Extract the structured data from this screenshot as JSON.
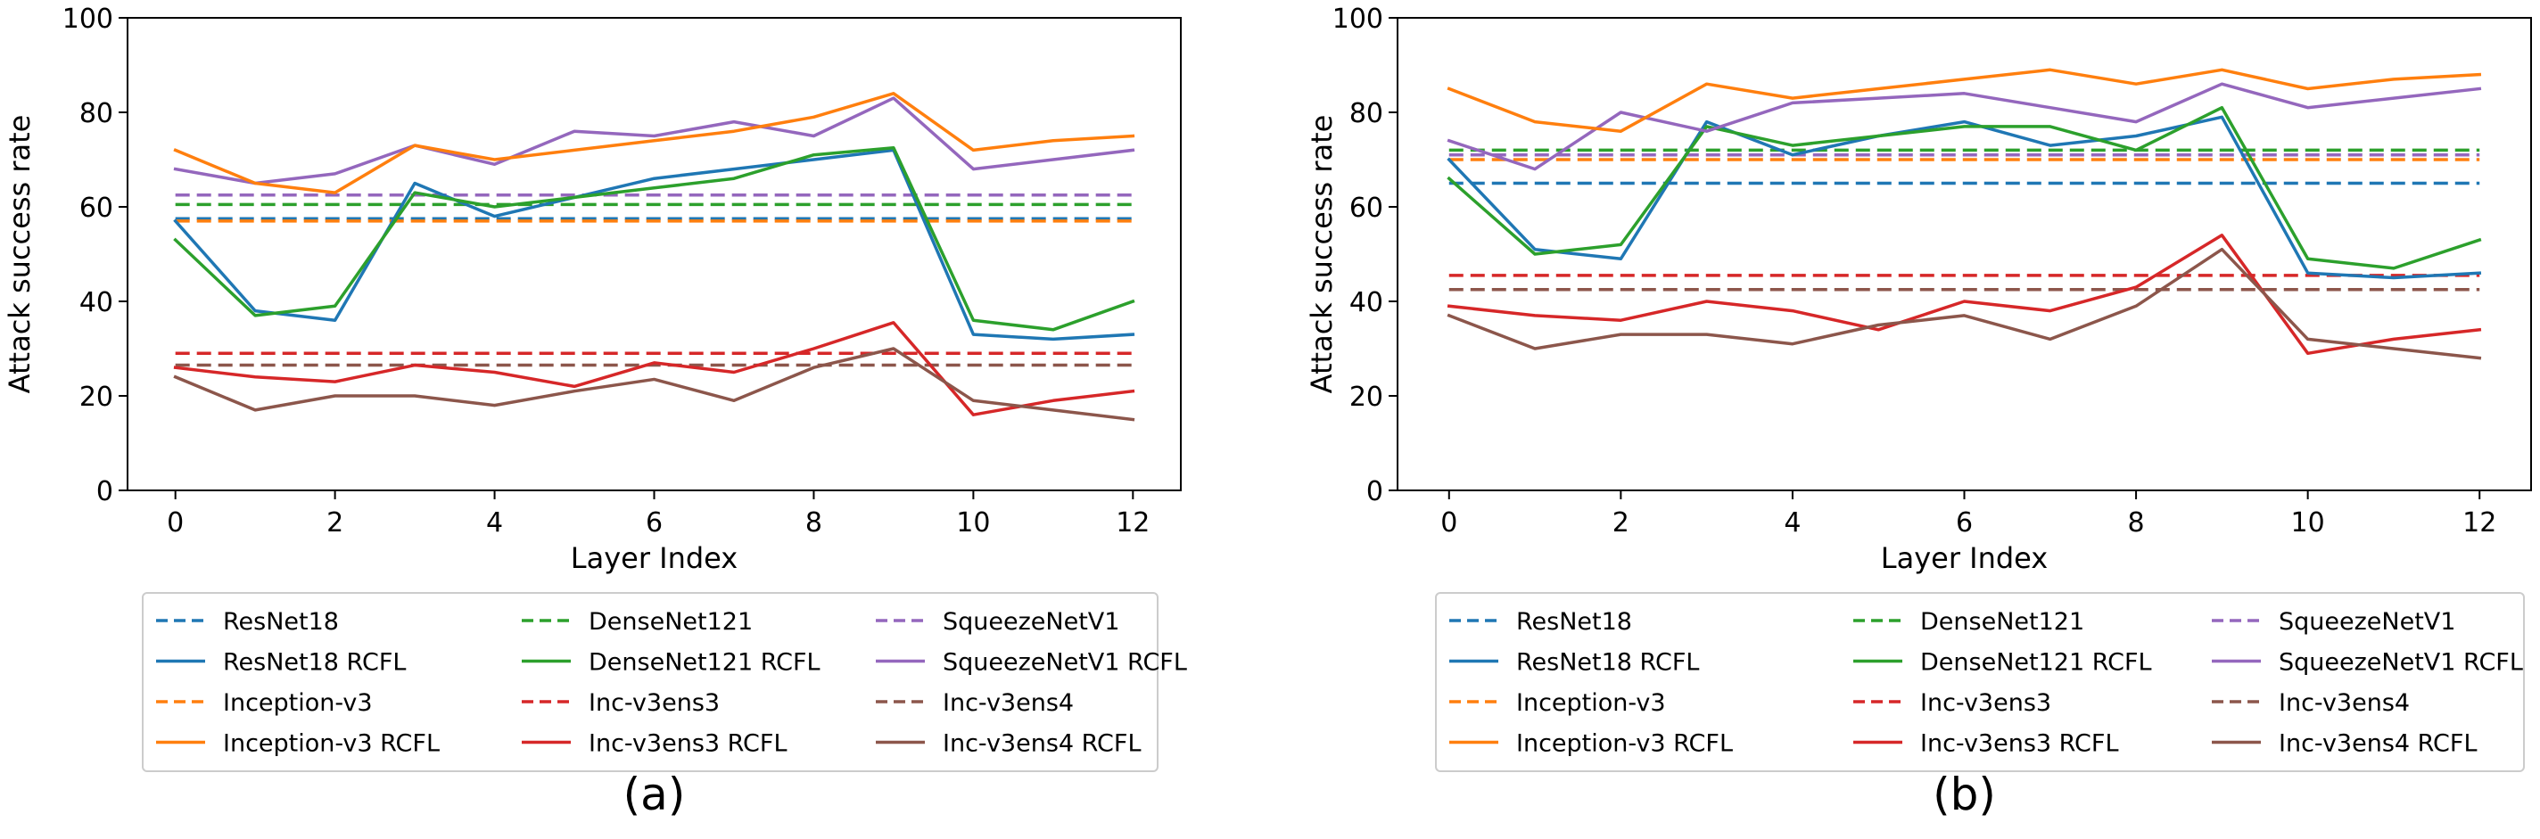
{
  "figure": {
    "panel_labels": [
      "(a)",
      "(b)"
    ]
  },
  "colors": {
    "ResNet18": "#1f77b4",
    "DenseNet121": "#2ca02c",
    "SqueezeNetV1": "#9467bd",
    "Inception-v3": "#ff7f0e",
    "Inc-v3ens3": "#d62728",
    "Inc-v3ens4": "#8c564b"
  },
  "legend": {
    "entries": [
      {
        "label": "ResNet18",
        "model": "ResNet18",
        "style": "dashed"
      },
      {
        "label": "DenseNet121",
        "model": "DenseNet121",
        "style": "dashed"
      },
      {
        "label": "SqueezeNetV1",
        "model": "SqueezeNetV1",
        "style": "dashed"
      },
      {
        "label": "ResNet18 RCFL",
        "model": "ResNet18",
        "style": "solid"
      },
      {
        "label": "DenseNet121 RCFL",
        "model": "DenseNet121",
        "style": "solid"
      },
      {
        "label": "SqueezeNetV1 RCFL",
        "model": "SqueezeNetV1",
        "style": "solid"
      },
      {
        "label": "Inception-v3",
        "model": "Inception-v3",
        "style": "dashed"
      },
      {
        "label": "Inc-v3ens3",
        "model": "Inc-v3ens3",
        "style": "dashed"
      },
      {
        "label": "Inc-v3ens4",
        "model": "Inc-v3ens4",
        "style": "dashed"
      },
      {
        "label": "Inception-v3 RCFL",
        "model": "Inception-v3",
        "style": "solid"
      },
      {
        "label": "Inc-v3ens3 RCFL",
        "model": "Inc-v3ens3",
        "style": "solid"
      },
      {
        "label": "Inc-v3ens4 RCFL",
        "model": "Inc-v3ens4",
        "style": "solid"
      }
    ]
  },
  "chart_data": [
    {
      "type": "line",
      "panel": "(a)",
      "xlabel": "Layer Index",
      "ylabel": "Attack success rate",
      "xlim": [
        -0.6,
        12.6
      ],
      "ylim": [
        0,
        100
      ],
      "xticks": [
        0,
        2,
        4,
        6,
        8,
        10,
        12
      ],
      "yticks": [
        0,
        20,
        40,
        60,
        80,
        100
      ],
      "x": [
        0,
        1,
        2,
        3,
        4,
        5,
        6,
        7,
        8,
        9,
        10,
        11,
        12
      ],
      "baselines": [
        {
          "name": "ResNet18",
          "value": 57.5
        },
        {
          "name": "DenseNet121",
          "value": 60.5
        },
        {
          "name": "SqueezeNetV1",
          "value": 62.5
        },
        {
          "name": "Inception-v3",
          "value": 57.0
        },
        {
          "name": "Inc-v3ens3",
          "value": 29.0
        },
        {
          "name": "Inc-v3ens4",
          "value": 26.5
        }
      ],
      "series": [
        {
          "name": "ResNet18 RCFL",
          "model": "ResNet18",
          "values": [
            57,
            38,
            36,
            65,
            58,
            62,
            66,
            68,
            70,
            72,
            33,
            32,
            33
          ]
        },
        {
          "name": "DenseNet121 RCFL",
          "model": "DenseNet121",
          "values": [
            53,
            37,
            39,
            63,
            60,
            62,
            64,
            66,
            71,
            72.5,
            36,
            34,
            40
          ]
        },
        {
          "name": "SqueezeNetV1 RCFL",
          "model": "SqueezeNetV1",
          "values": [
            68,
            65,
            67,
            73,
            69,
            76,
            75,
            78,
            75,
            83,
            68,
            70,
            72
          ]
        },
        {
          "name": "Inception-v3 RCFL",
          "model": "Inception-v3",
          "values": [
            72,
            65,
            63,
            73,
            70,
            72,
            74,
            76,
            79,
            84,
            72,
            74,
            75
          ]
        },
        {
          "name": "Inc-v3ens3 RCFL",
          "model": "Inc-v3ens3",
          "values": [
            26,
            24,
            23,
            26.5,
            25,
            22,
            27,
            25,
            30,
            35.5,
            16,
            19,
            21
          ]
        },
        {
          "name": "Inc-v3ens4 RCFL",
          "model": "Inc-v3ens4",
          "values": [
            24,
            17,
            20,
            20,
            18,
            21,
            23.5,
            19,
            26,
            30,
            19,
            17,
            15
          ]
        }
      ]
    },
    {
      "type": "line",
      "panel": "(b)",
      "xlabel": "Layer Index",
      "ylabel": "Attack success rate",
      "xlim": [
        -0.6,
        12.6
      ],
      "ylim": [
        0,
        100
      ],
      "xticks": [
        0,
        2,
        4,
        6,
        8,
        10,
        12
      ],
      "yticks": [
        0,
        20,
        40,
        60,
        80,
        100
      ],
      "x": [
        0,
        1,
        2,
        3,
        4,
        5,
        6,
        7,
        8,
        9,
        10,
        11,
        12
      ],
      "baselines": [
        {
          "name": "ResNet18",
          "value": 65.0
        },
        {
          "name": "DenseNet121",
          "value": 72.0
        },
        {
          "name": "SqueezeNetV1",
          "value": 71.0
        },
        {
          "name": "Inception-v3",
          "value": 70.0
        },
        {
          "name": "Inc-v3ens3",
          "value": 45.5
        },
        {
          "name": "Inc-v3ens4",
          "value": 42.5
        }
      ],
      "series": [
        {
          "name": "ResNet18 RCFL",
          "model": "ResNet18",
          "values": [
            70,
            51,
            49,
            78,
            71,
            75,
            78,
            73,
            75,
            79,
            46,
            45,
            46
          ]
        },
        {
          "name": "DenseNet121 RCFL",
          "model": "DenseNet121",
          "values": [
            66,
            50,
            52,
            77,
            73,
            75,
            77,
            77,
            72,
            81,
            49,
            47,
            53
          ]
        },
        {
          "name": "SqueezeNetV1 RCFL",
          "model": "SqueezeNetV1",
          "values": [
            74,
            68,
            80,
            76,
            82,
            83,
            84,
            81,
            78,
            86,
            81,
            83,
            85
          ]
        },
        {
          "name": "Inception-v3 RCFL",
          "model": "Inception-v3",
          "values": [
            85,
            78,
            76,
            86,
            83,
            85,
            87,
            89,
            86,
            89,
            85,
            87,
            88
          ]
        },
        {
          "name": "Inc-v3ens3 RCFL",
          "model": "Inc-v3ens3",
          "values": [
            39,
            37,
            36,
            40,
            38,
            34,
            40,
            38,
            43,
            54,
            29,
            32,
            34
          ]
        },
        {
          "name": "Inc-v3ens4 RCFL",
          "model": "Inc-v3ens4",
          "values": [
            37,
            30,
            33,
            33,
            31,
            35,
            37,
            32,
            39,
            51,
            32,
            30,
            28
          ]
        }
      ]
    }
  ]
}
